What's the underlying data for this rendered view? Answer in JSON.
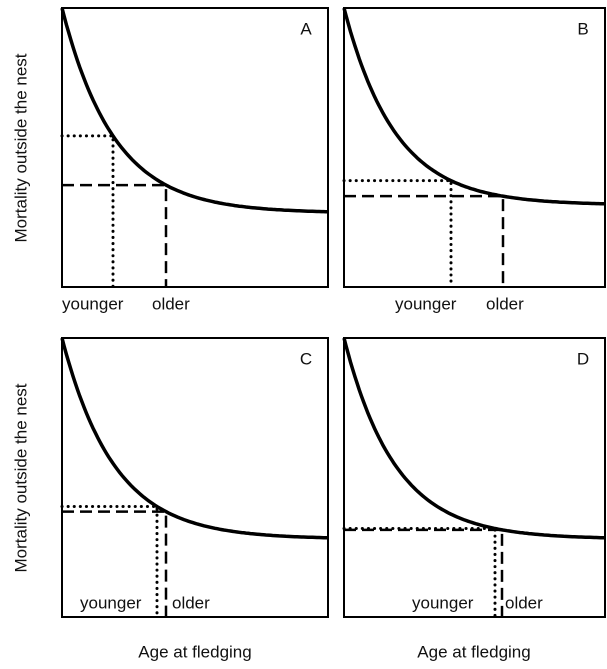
{
  "panels": [
    {
      "letter": "A",
      "younger": "younger",
      "older": "older"
    },
    {
      "letter": "B",
      "younger": "younger",
      "older": "older"
    },
    {
      "letter": "C",
      "younger": "younger",
      "older": "older"
    },
    {
      "letter": "D",
      "younger": "younger",
      "older": "older"
    }
  ],
  "y_axis_label": "Mortality outside the nest",
  "x_axis_label": "Age at fledging"
}
